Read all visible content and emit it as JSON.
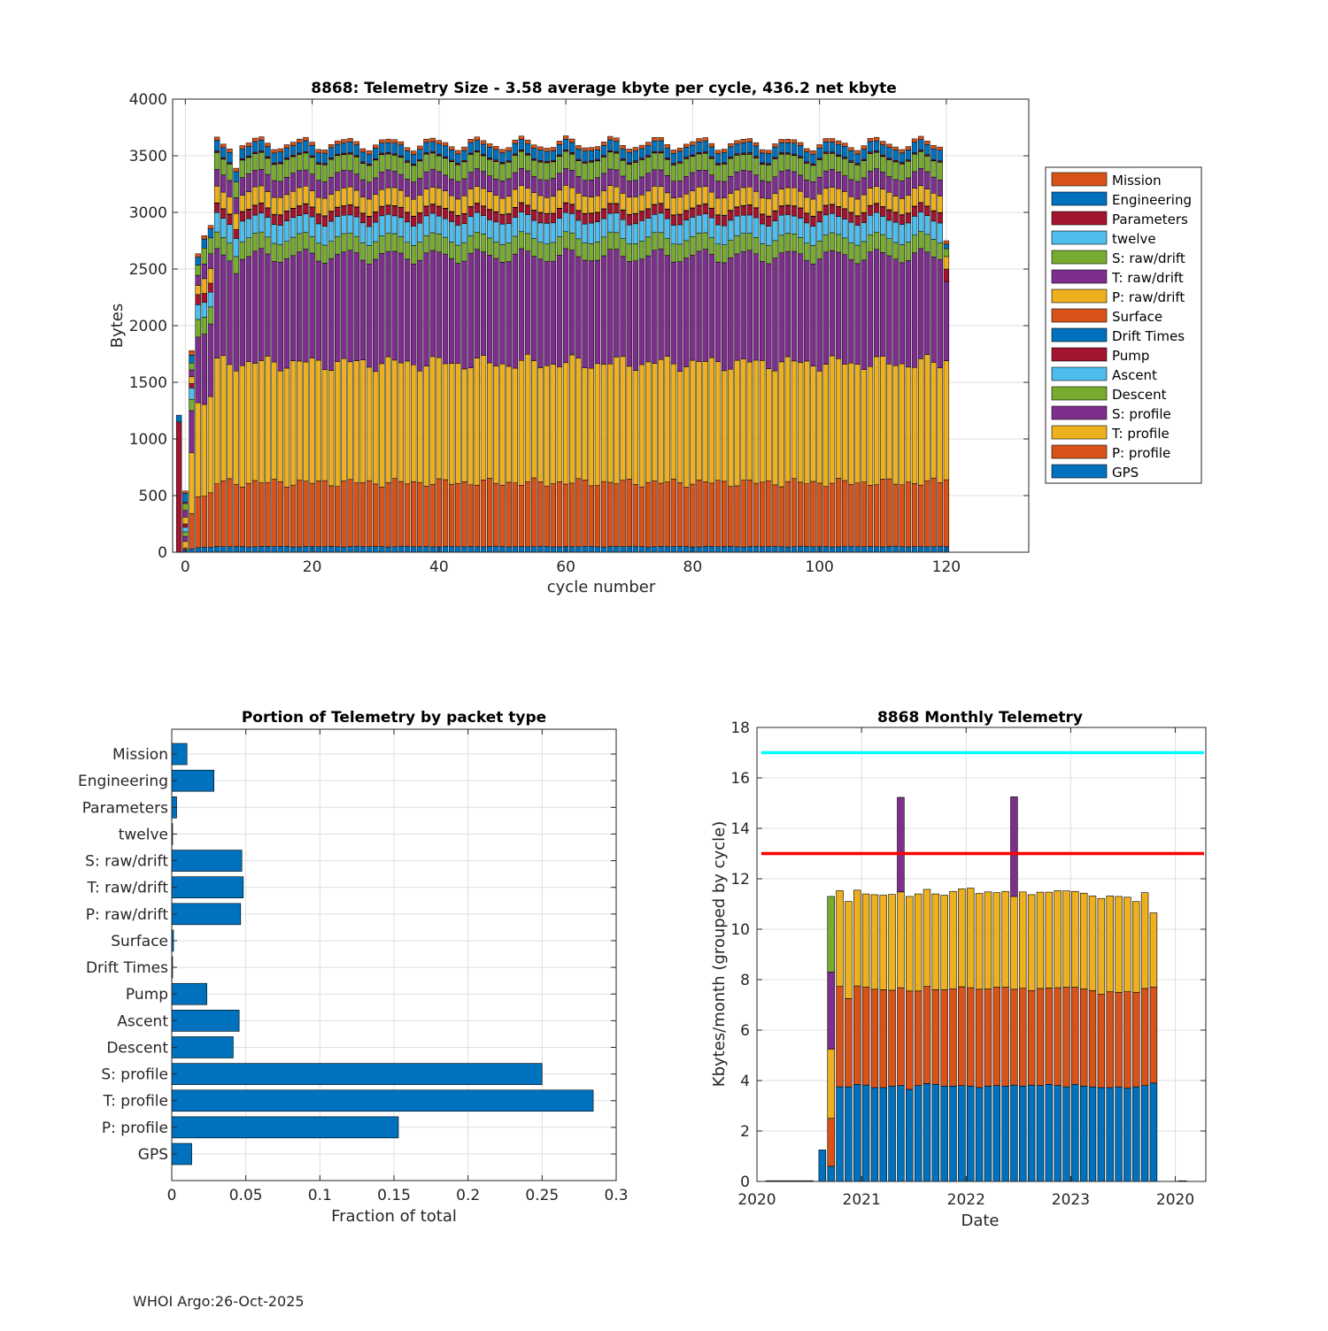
{
  "footer": "WHOI Argo:26-Oct-2025",
  "chart_data": [
    {
      "type": "bar",
      "stacked": true,
      "title": "8868: Telemetry Size - 3.58 average kbyte per cycle,  436.2 net kbyte",
      "xlabel": "cycle number",
      "ylabel": "Bytes",
      "xlim": [
        -2,
        133
      ],
      "ylim": [
        0,
        4000
      ],
      "xticks": [
        0,
        20,
        40,
        60,
        80,
        100,
        120
      ],
      "yticks": [
        0,
        500,
        1000,
        1500,
        2000,
        2500,
        3000,
        3500,
        4000
      ],
      "grid": true,
      "legend_position": "right",
      "cycles_count": 122,
      "series": [
        {
          "name": "GPS",
          "color": "#0072BD",
          "typical": 50
        },
        {
          "name": "P: profile",
          "color": "#D95319",
          "typical": 565
        },
        {
          "name": "T: profile",
          "color": "#EDB120",
          "typical": 1055
        },
        {
          "name": "S: profile",
          "color": "#7E2F8E",
          "typical": 945
        },
        {
          "name": "Descent",
          "color": "#77AC30",
          "typical": 155
        },
        {
          "name": "Ascent",
          "color": "#4DBEEE",
          "typical": 170
        },
        {
          "name": "Pump",
          "color": "#A2142F",
          "typical": 85
        },
        {
          "name": "Drift Times",
          "color": "#0072BD",
          "typical": 0
        },
        {
          "name": "Surface",
          "color": "#D95319",
          "typical": 3
        },
        {
          "name": "P: raw/drift",
          "color": "#EDB120",
          "typical": 150
        },
        {
          "name": "T: raw/drift",
          "color": "#7E2F8E",
          "typical": 150
        },
        {
          "name": "S: raw/drift",
          "color": "#77AC30",
          "typical": 150
        },
        {
          "name": "twelve",
          "color": "#4DBEEE",
          "typical": 1
        },
        {
          "name": "Parameters",
          "color": "#A2142F",
          "typical": 10
        },
        {
          "name": "Engineering",
          "color": "#0072BD",
          "typical": 90
        },
        {
          "name": "Mission",
          "color": "#D95319",
          "typical": 30
        }
      ],
      "special_cycles": {
        "-1": {
          "Parameters": 1150,
          "Engineering": 60
        },
        "0": {
          "GPS": 20,
          "P: profile": 15,
          "T: profile": 60,
          "S: profile": 45,
          "Descent": 40,
          "Ascent": 40,
          "Pump": 30,
          "P: raw/drift": 60,
          "T: raw/drift": 60,
          "S: raw/drift": 60,
          "Parameters": 10,
          "Engineering": 80,
          "Mission": 20
        },
        "1": {
          "GPS": 30,
          "P: profile": 310,
          "T: profile": 540,
          "S: profile": 370,
          "Descent": 100,
          "Ascent": 100,
          "Pump": 40,
          "P: raw/drift": 60,
          "T: raw/drift": 60,
          "S: raw/drift": 60,
          "Engineering": 70,
          "Mission": 40
        },
        "2": {
          "GPS": 40,
          "P: profile": 450,
          "T: profile": 830,
          "S: profile": 580,
          "Descent": 155,
          "Ascent": 130,
          "Pump": 90,
          "P: raw/drift": 80,
          "T: raw/drift": 90,
          "S: raw/drift": 90,
          "Engineering": 70,
          "Mission": 30
        },
        "3": {
          "GPS": 45,
          "P: profile": 450,
          "T: profile": 810,
          "S: profile": 620,
          "Descent": 150,
          "Ascent": 130,
          "Pump": 80,
          "P: raw/drift": 130,
          "T: raw/drift": 130,
          "S: raw/drift": 140,
          "Engineering": 80,
          "Mission": 30
        },
        "4": {
          "GPS": 45,
          "P: profile": 480,
          "T: profile": 850,
          "S: profile": 640,
          "Descent": 150,
          "Ascent": 130,
          "Pump": 80,
          "P: raw/drift": 130,
          "T: raw/drift": 130,
          "S: raw/drift": 140,
          "Engineering": 80,
          "Mission": 30
        },
        "8": {
          "GPS": 50,
          "P: profile": 550,
          "T: profile": 1000,
          "S: profile": 860,
          "Descent": 150,
          "Ascent": 160,
          "Pump": 80,
          "P: raw/drift": 140,
          "T: raw/drift": 140,
          "S: raw/drift": 140,
          "Engineering": 90,
          "Mission": 30
        },
        "120": {
          "GPS": 50,
          "P: profile": 590,
          "T: profile": 1050,
          "S: profile": 700,
          "Pump": 110,
          "P: raw/drift": 110,
          "S: raw/drift": 70,
          "Engineering": 40,
          "Mission": 30
        }
      }
    },
    {
      "type": "barh",
      "title": "Portion of Telemetry by packet type",
      "xlabel": "Fraction of total",
      "xlim": [
        0,
        0.3
      ],
      "xticks": [
        0,
        0.05,
        0.1,
        0.15,
        0.2,
        0.25,
        0.3
      ],
      "xtick_labels": [
        "0",
        "0.05",
        "0.1",
        "0.15",
        "0.2",
        "0.25",
        "0.3"
      ],
      "grid": true,
      "color": "#0072BD",
      "categories": [
        "GPS",
        "P: profile",
        "T: profile",
        "S: profile",
        "Descent",
        "Ascent",
        "Pump",
        "Drift Times",
        "Surface",
        "P: raw/drift",
        "T: raw/drift",
        "S: raw/drift",
        "twelve",
        "Parameters",
        "Engineering",
        "Mission"
      ],
      "values": [
        0.0135,
        0.153,
        0.2845,
        0.25,
        0.0415,
        0.0455,
        0.0237,
        0.0005,
        0.0012,
        0.0465,
        0.0483,
        0.0473,
        0.0005,
        0.0033,
        0.0285,
        0.0103
      ]
    },
    {
      "type": "bar",
      "stacked": true,
      "title": "8868 Monthly Telemetry",
      "xlabel": "Date",
      "ylabel": "Kbytes/month (grouped by cycle)",
      "ylim": [
        0,
        18
      ],
      "yticks": [
        0,
        2,
        4,
        6,
        8,
        10,
        12,
        14,
        16,
        18
      ],
      "xtick_labels": [
        "2020",
        "2021",
        "2022",
        "2023",
        "2020"
      ],
      "xtick_months": [
        0,
        12,
        24,
        36,
        48
      ],
      "xlim_months": [
        0,
        51.5
      ],
      "grid": true,
      "reference_lines": [
        {
          "value": 17,
          "color": "#00FFFF"
        },
        {
          "value": 13,
          "color": "#FF0000"
        }
      ],
      "baseline_months": [
        1,
        2,
        3,
        4,
        5,
        6
      ],
      "series": [
        {
          "name": "Blue",
          "color": "#0072BD"
        },
        {
          "name": "Orange",
          "color": "#D95319"
        },
        {
          "name": "Yellow",
          "color": "#EDB120"
        },
        {
          "name": "Purple",
          "color": "#7E2F8E"
        },
        {
          "name": "Green",
          "color": "#77AC30"
        }
      ],
      "months": [
        {
          "m": 7.5,
          "stack": [
            1.25,
            0,
            0,
            0,
            0
          ]
        },
        {
          "m": 8.5,
          "stack": [
            0.6,
            1.9,
            2.75,
            3.05,
            3.0
          ]
        },
        {
          "m": 9.5,
          "stack": [
            3.75,
            3.98,
            3.8,
            0,
            0
          ]
        },
        {
          "m": 10.5,
          "stack": [
            3.75,
            3.5,
            3.85,
            0,
            0
          ]
        },
        {
          "m": 11.5,
          "stack": [
            3.85,
            3.9,
            3.8,
            0,
            0
          ]
        },
        {
          "m": 12.5,
          "stack": [
            3.82,
            3.88,
            3.7,
            0,
            0
          ]
        },
        {
          "m": 13.5,
          "stack": [
            3.72,
            3.9,
            3.75,
            0,
            0
          ]
        },
        {
          "m": 14.5,
          "stack": [
            3.72,
            3.88,
            3.75,
            0,
            0
          ]
        },
        {
          "m": 15.5,
          "stack": [
            3.78,
            3.8,
            3.8,
            0,
            0
          ]
        },
        {
          "m": 16.5,
          "stack": [
            3.8,
            3.88,
            3.8,
            3.75,
            0
          ]
        },
        {
          "m": 17.5,
          "stack": [
            3.65,
            3.9,
            3.75,
            0,
            0
          ]
        },
        {
          "m": 18.5,
          "stack": [
            3.8,
            3.75,
            3.85,
            0,
            0
          ]
        },
        {
          "m": 19.5,
          "stack": [
            3.88,
            3.85,
            3.85,
            0,
            0
          ]
        },
        {
          "m": 20.5,
          "stack": [
            3.85,
            3.75,
            3.8,
            0,
            0
          ]
        },
        {
          "m": 21.5,
          "stack": [
            3.78,
            3.82,
            3.75,
            0,
            0
          ]
        },
        {
          "m": 22.5,
          "stack": [
            3.78,
            3.85,
            3.87,
            0,
            0
          ]
        },
        {
          "m": 23.5,
          "stack": [
            3.8,
            3.92,
            3.88,
            0,
            0
          ]
        },
        {
          "m": 24.5,
          "stack": [
            3.78,
            3.9,
            3.95,
            0,
            0
          ]
        },
        {
          "m": 25.5,
          "stack": [
            3.72,
            3.9,
            3.8,
            0,
            0
          ]
        },
        {
          "m": 26.5,
          "stack": [
            3.78,
            3.85,
            3.85,
            0,
            0
          ]
        },
        {
          "m": 27.5,
          "stack": [
            3.8,
            3.9,
            3.75,
            0,
            0
          ]
        },
        {
          "m": 28.5,
          "stack": [
            3.78,
            3.92,
            3.8,
            0,
            0
          ]
        },
        {
          "m": 29.5,
          "stack": [
            3.82,
            3.8,
            3.68,
            3.95,
            0
          ]
        },
        {
          "m": 30.5,
          "stack": [
            3.78,
            3.88,
            3.82,
            0,
            0
          ]
        },
        {
          "m": 31.5,
          "stack": [
            3.82,
            3.75,
            3.8,
            0,
            0
          ]
        },
        {
          "m": 32.5,
          "stack": [
            3.8,
            3.85,
            3.82,
            0,
            0
          ]
        },
        {
          "m": 33.5,
          "stack": [
            3.85,
            3.82,
            3.8,
            0,
            0
          ]
        },
        {
          "m": 34.5,
          "stack": [
            3.8,
            3.88,
            3.85,
            0,
            0
          ]
        },
        {
          "m": 35.5,
          "stack": [
            3.75,
            3.95,
            3.82,
            0,
            0
          ]
        },
        {
          "m": 36.5,
          "stack": [
            3.85,
            3.85,
            3.8,
            0,
            0
          ]
        },
        {
          "m": 37.5,
          "stack": [
            3.78,
            3.85,
            3.8,
            0,
            0
          ]
        },
        {
          "m": 38.5,
          "stack": [
            3.75,
            3.82,
            3.75,
            0,
            0
          ]
        },
        {
          "m": 39.5,
          "stack": [
            3.72,
            3.7,
            3.8,
            0,
            0
          ]
        },
        {
          "m": 40.5,
          "stack": [
            3.72,
            3.8,
            3.8,
            0,
            0
          ]
        },
        {
          "m": 41.5,
          "stack": [
            3.75,
            3.75,
            3.8,
            0,
            0
          ]
        },
        {
          "m": 42.5,
          "stack": [
            3.7,
            3.82,
            3.75,
            0,
            0
          ]
        },
        {
          "m": 43.5,
          "stack": [
            3.75,
            3.75,
            3.6,
            0,
            0
          ]
        },
        {
          "m": 44.5,
          "stack": [
            3.8,
            3.85,
            3.8,
            0,
            0
          ]
        },
        {
          "m": 45.5,
          "stack": [
            3.9,
            3.8,
            2.95,
            0,
            0
          ]
        }
      ]
    }
  ]
}
